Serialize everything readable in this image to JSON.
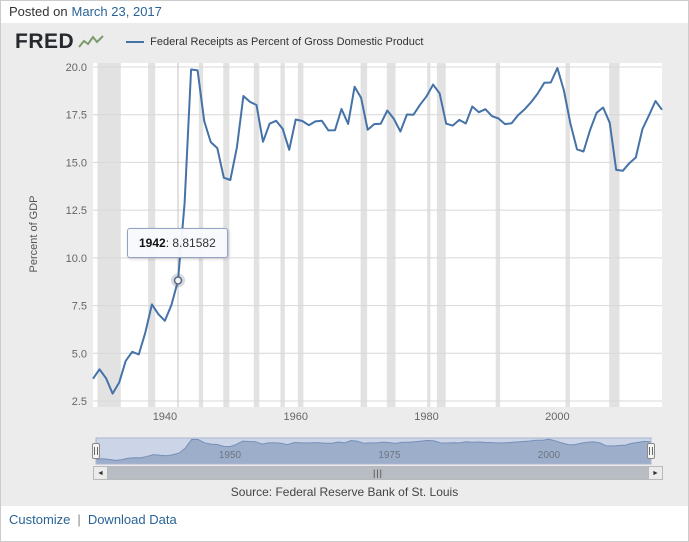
{
  "posted": {
    "prefix": "Posted on",
    "date": "March 23, 2017"
  },
  "header": {
    "logo_text": "FRED",
    "legend_label": "Federal Receipts as Percent of Gross Domestic Product"
  },
  "chart_data": {
    "type": "line",
    "title": "",
    "ylabel": "Percent of GDP",
    "ylim": [
      2.5,
      20.0
    ],
    "yticks": [
      "2.5",
      "5.0",
      "7.5",
      "10.0",
      "12.5",
      "15.0",
      "17.5",
      "20.0"
    ],
    "xticks": [
      1940,
      1960,
      1980,
      2000
    ],
    "x_range": [
      1929,
      2016
    ],
    "grid": "horizontal",
    "legend_position": "top",
    "line_color": "#4572a7",
    "recession_band_color": "#e2e2e2",
    "tooltip": {
      "year": "1942",
      "separator": ": ",
      "value": "8.81582"
    },
    "series": [
      {
        "name": "Federal Receipts as Percent of Gross Domestic Product",
        "x": [
          1929,
          1930,
          1931,
          1932,
          1933,
          1934,
          1935,
          1936,
          1937,
          1938,
          1939,
          1940,
          1941,
          1942,
          1943,
          1944,
          1945,
          1946,
          1947,
          1948,
          1949,
          1950,
          1951,
          1952,
          1953,
          1954,
          1955,
          1956,
          1957,
          1958,
          1959,
          1960,
          1961,
          1962,
          1963,
          1964,
          1965,
          1966,
          1967,
          1968,
          1969,
          1970,
          1971,
          1972,
          1973,
          1974,
          1975,
          1976,
          1977,
          1978,
          1979,
          1980,
          1981,
          1982,
          1983,
          1984,
          1985,
          1986,
          1987,
          1988,
          1989,
          1990,
          1991,
          1992,
          1993,
          1994,
          1995,
          1996,
          1997,
          1998,
          1999,
          2000,
          2001,
          2002,
          2003,
          2004,
          2005,
          2006,
          2007,
          2008,
          2009,
          2010,
          2011,
          2012,
          2013,
          2014,
          2015,
          2016
        ],
        "values": [
          3.67,
          4.16,
          3.69,
          2.89,
          3.47,
          4.6,
          5.08,
          4.94,
          6.08,
          7.56,
          7.05,
          6.7,
          7.54,
          8.81582,
          12.87,
          19.87,
          19.82,
          17.17,
          16.07,
          15.75,
          14.2,
          14.08,
          15.79,
          18.48,
          18.17,
          18.01,
          16.08,
          17.03,
          17.18,
          16.76,
          15.66,
          17.25,
          17.17,
          16.95,
          17.15,
          17.18,
          16.68,
          16.69,
          17.8,
          17.02,
          18.97,
          18.38,
          16.71,
          17.01,
          17.03,
          17.72,
          17.28,
          16.62,
          17.51,
          17.5,
          18.02,
          18.47,
          19.08,
          18.62,
          17.03,
          16.93,
          17.23,
          17.04,
          17.93,
          17.63,
          17.79,
          17.42,
          17.3,
          17.01,
          17.05,
          17.48,
          17.79,
          18.16,
          18.61,
          19.17,
          19.19,
          19.95,
          18.77,
          17.04,
          15.69,
          15.57,
          16.7,
          17.6,
          17.88,
          17.08,
          14.61,
          14.56,
          14.96,
          15.26,
          16.74,
          17.46,
          18.22,
          17.76
        ]
      }
    ],
    "recession_bands": [
      [
        1929.67,
        1933.25
      ],
      [
        1937.42,
        1938.5
      ],
      [
        1945.17,
        1945.83
      ],
      [
        1948.92,
        1949.83
      ],
      [
        1953.58,
        1954.42
      ],
      [
        1957.67,
        1958.33
      ],
      [
        1960.33,
        1961.17
      ],
      [
        1969.92,
        1970.92
      ],
      [
        1973.92,
        1975.25
      ],
      [
        1980.08,
        1980.58
      ],
      [
        1981.58,
        1982.92
      ],
      [
        1990.58,
        1991.25
      ],
      [
        2001.25,
        2001.92
      ],
      [
        2007.92,
        2009.5
      ]
    ]
  },
  "navigator": {
    "labels": [
      "1950",
      "1975",
      "2000"
    ]
  },
  "scrollbar": {
    "left_arrow_icon": "◄",
    "right_arrow_icon": "►",
    "grip_icon": "|||"
  },
  "source": "Source: Federal Reserve Bank of St. Louis",
  "footer": {
    "customize_label": "Customize",
    "separator": "|",
    "download_label": "Download Data"
  }
}
